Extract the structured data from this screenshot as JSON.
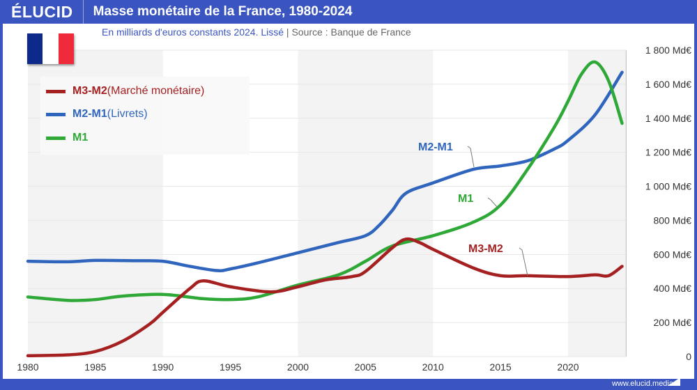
{
  "header": {
    "logo": "ÉLUCID",
    "title": "Masse monétaire de la France, 1980-2024"
  },
  "subtitle": {
    "main": "En milliards d'euros constants 2024. Lissé",
    "sep": " | ",
    "source": "Source : Banque de France"
  },
  "footer": {
    "url": "www.elucid.media"
  },
  "colors": {
    "M3-M2": "#a52020",
    "M2-M1": "#2f65bd",
    "M1": "#2ea836",
    "brand": "#3b55c0"
  },
  "legend": [
    {
      "bold": "M3-M2",
      "rest": " (Marché monétaire)",
      "color": "#a52020"
    },
    {
      "bold": "M2-M1",
      "rest": " (Livrets)",
      "color": "#2f65bd"
    },
    {
      "bold": "M1",
      "rest": "",
      "color": "#2ea836"
    }
  ],
  "chart_data": {
    "type": "line",
    "title": "Masse monétaire de la France, 1980-2024",
    "xlim": [
      1980,
      2024
    ],
    "ylim": [
      0,
      1800
    ],
    "xticks": [
      1980,
      1985,
      1990,
      1995,
      2000,
      2005,
      2010,
      2015,
      2020
    ],
    "yticks": [
      {
        "v": 0,
        "label": "0"
      },
      {
        "v": 200,
        "label": "200 Md€"
      },
      {
        "v": 400,
        "label": "400 Md€"
      },
      {
        "v": 600,
        "label": "600 Md€"
      },
      {
        "v": 800,
        "label": "800 Md€"
      },
      {
        "v": 1000,
        "label": "1 000 Md€"
      },
      {
        "v": 1200,
        "label": "1 200 Md€"
      },
      {
        "v": 1400,
        "label": "1 400 Md€"
      },
      {
        "v": 1600,
        "label": "1 600 Md€"
      },
      {
        "v": 1800,
        "label": "1 800 Md€"
      }
    ],
    "series": [
      {
        "name": "M2-M1",
        "color": "#2f65bd",
        "annotation": "M2-M1",
        "points": [
          [
            1980,
            560
          ],
          [
            1983,
            557
          ],
          [
            1985,
            565
          ],
          [
            1988,
            563
          ],
          [
            1990,
            560
          ],
          [
            1992,
            530
          ],
          [
            1994,
            505
          ],
          [
            1995,
            515
          ],
          [
            1997,
            550
          ],
          [
            2000,
            610
          ],
          [
            2003,
            670
          ],
          [
            2005,
            710
          ],
          [
            2006,
            770
          ],
          [
            2007,
            860
          ],
          [
            2008,
            960
          ],
          [
            2010,
            1020
          ],
          [
            2013,
            1100
          ],
          [
            2015,
            1120
          ],
          [
            2017,
            1150
          ],
          [
            2019,
            1220
          ],
          [
            2020,
            1270
          ],
          [
            2022,
            1420
          ],
          [
            2024,
            1670
          ]
        ]
      },
      {
        "name": "M1",
        "color": "#2ea836",
        "annotation": "M1",
        "points": [
          [
            1980,
            350
          ],
          [
            1983,
            330
          ],
          [
            1985,
            335
          ],
          [
            1987,
            355
          ],
          [
            1990,
            365
          ],
          [
            1993,
            340
          ],
          [
            1995,
            335
          ],
          [
            1997,
            350
          ],
          [
            2000,
            420
          ],
          [
            2003,
            480
          ],
          [
            2005,
            560
          ],
          [
            2007,
            650
          ],
          [
            2010,
            710
          ],
          [
            2013,
            790
          ],
          [
            2015,
            890
          ],
          [
            2017,
            1100
          ],
          [
            2019,
            1350
          ],
          [
            2020,
            1500
          ],
          [
            2021,
            1660
          ],
          [
            2022,
            1730
          ],
          [
            2023,
            1620
          ],
          [
            2024,
            1370
          ]
        ]
      },
      {
        "name": "M3-M2",
        "color": "#a52020",
        "annotation": "M3-M2",
        "points": [
          [
            1980,
            5
          ],
          [
            1983,
            10
          ],
          [
            1985,
            30
          ],
          [
            1987,
            90
          ],
          [
            1989,
            190
          ],
          [
            1990,
            260
          ],
          [
            1992,
            400
          ],
          [
            1993,
            445
          ],
          [
            1995,
            410
          ],
          [
            1998,
            380
          ],
          [
            2000,
            410
          ],
          [
            2002,
            450
          ],
          [
            2004,
            470
          ],
          [
            2005,
            500
          ],
          [
            2007,
            640
          ],
          [
            2008,
            690
          ],
          [
            2009,
            670
          ],
          [
            2010,
            630
          ],
          [
            2013,
            520
          ],
          [
            2015,
            475
          ],
          [
            2017,
            475
          ],
          [
            2020,
            470
          ],
          [
            2022,
            480
          ],
          [
            2023,
            475
          ],
          [
            2024,
            530
          ]
        ]
      }
    ]
  }
}
